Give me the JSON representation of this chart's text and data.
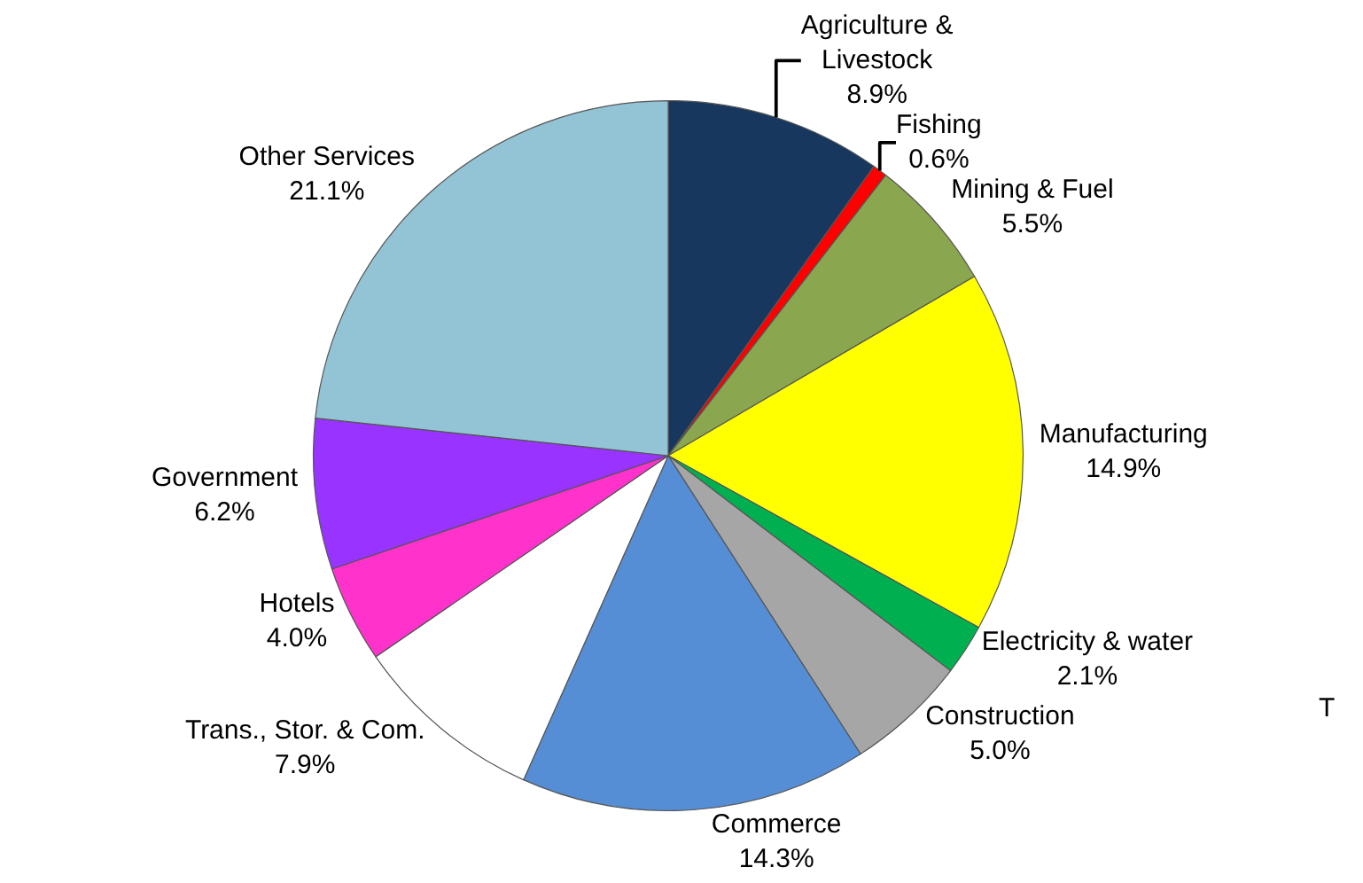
{
  "chart_data": {
    "type": "pie",
    "categories": [
      "Agriculture & Livestock",
      "Fishing",
      "Mining & Fuel",
      "Manufacturing",
      "Electricity & water",
      "Construction",
      "Commerce",
      "Trans., Stor. & Com.",
      "Hotels",
      "Government",
      "Other Services"
    ],
    "values": [
      8.9,
      0.6,
      5.5,
      14.9,
      2.1,
      5.0,
      14.3,
      7.9,
      4.0,
      6.2,
      21.1
    ],
    "value_labels": [
      "8.9%",
      "0.6%",
      "5.5%",
      "14.9%",
      "2.1%",
      "5.0%",
      "14.3%",
      "7.9%",
      "4.0%",
      "6.2%",
      "21.1%"
    ],
    "colors": [
      "#17375e",
      "#ff0000",
      "#8aa64f",
      "#ffff00",
      "#00b050",
      "#a6a6a6",
      "#558ed5",
      "#ffffff",
      "#ff33cc",
      "#9933ff",
      "#93c4d6"
    ],
    "annotations": [
      "T"
    ],
    "legend": false
  }
}
